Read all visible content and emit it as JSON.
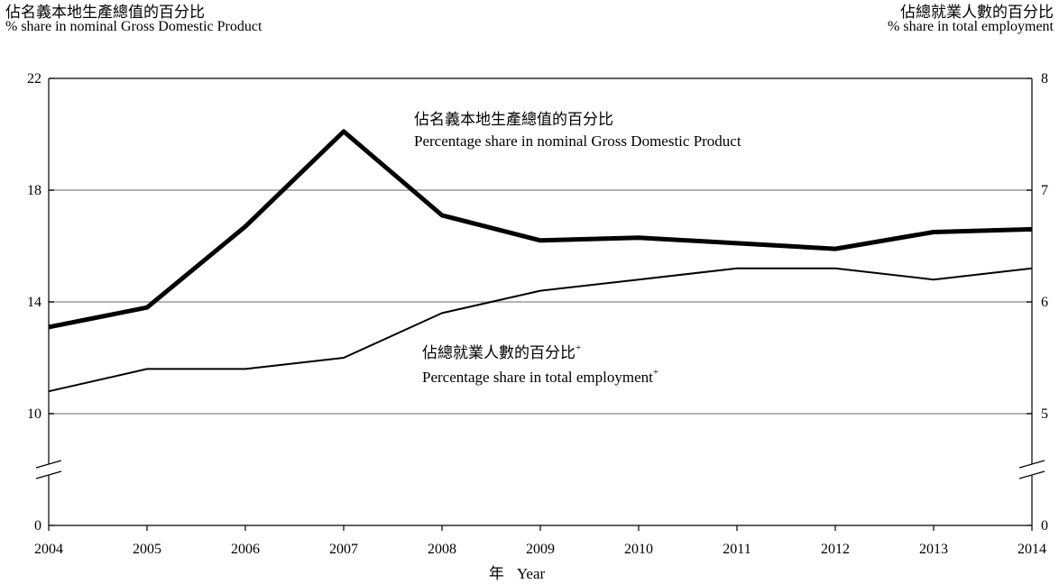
{
  "chart_data": {
    "type": "line",
    "left_axis": {
      "title_zh": "佔名義本地生產總值的百分比",
      "title_en": "% share in nominal Gross Domestic Product",
      "ticks": [
        0,
        10,
        14,
        18,
        22
      ],
      "ylim": [
        0,
        22
      ],
      "axis_break": true
    },
    "right_axis": {
      "title_zh": "佔總就業人數的百分比",
      "title_en": "% share in total employment",
      "ticks": [
        0,
        5,
        6,
        7,
        8
      ],
      "ylim": [
        0,
        8
      ],
      "axis_break": true
    },
    "x_axis": {
      "label_zh": "年",
      "label_en": "Year",
      "categories": [
        "2004",
        "2005",
        "2006",
        "2007",
        "2008",
        "2009",
        "2010",
        "2011",
        "2012",
        "2013",
        "2014"
      ]
    },
    "grid": "horizontal",
    "series": [
      {
        "axis": "left",
        "label_zh": "佔名義本地生產總值的百分比",
        "label_en": "Percentage share in nominal Gross Domestic Product",
        "style": "thick",
        "values": [
          13.1,
          13.8,
          16.7,
          20.1,
          17.1,
          16.2,
          16.3,
          16.1,
          15.9,
          16.5,
          16.6
        ]
      },
      {
        "axis": "right",
        "label_zh": "佔總就業人數的百分比",
        "label_en": "Percentage share in total employment",
        "label_superscript": "+",
        "style": "thin",
        "values": [
          5.2,
          5.4,
          5.4,
          5.5,
          5.9,
          6.1,
          6.2,
          6.3,
          6.3,
          6.2,
          6.3
        ]
      }
    ]
  }
}
